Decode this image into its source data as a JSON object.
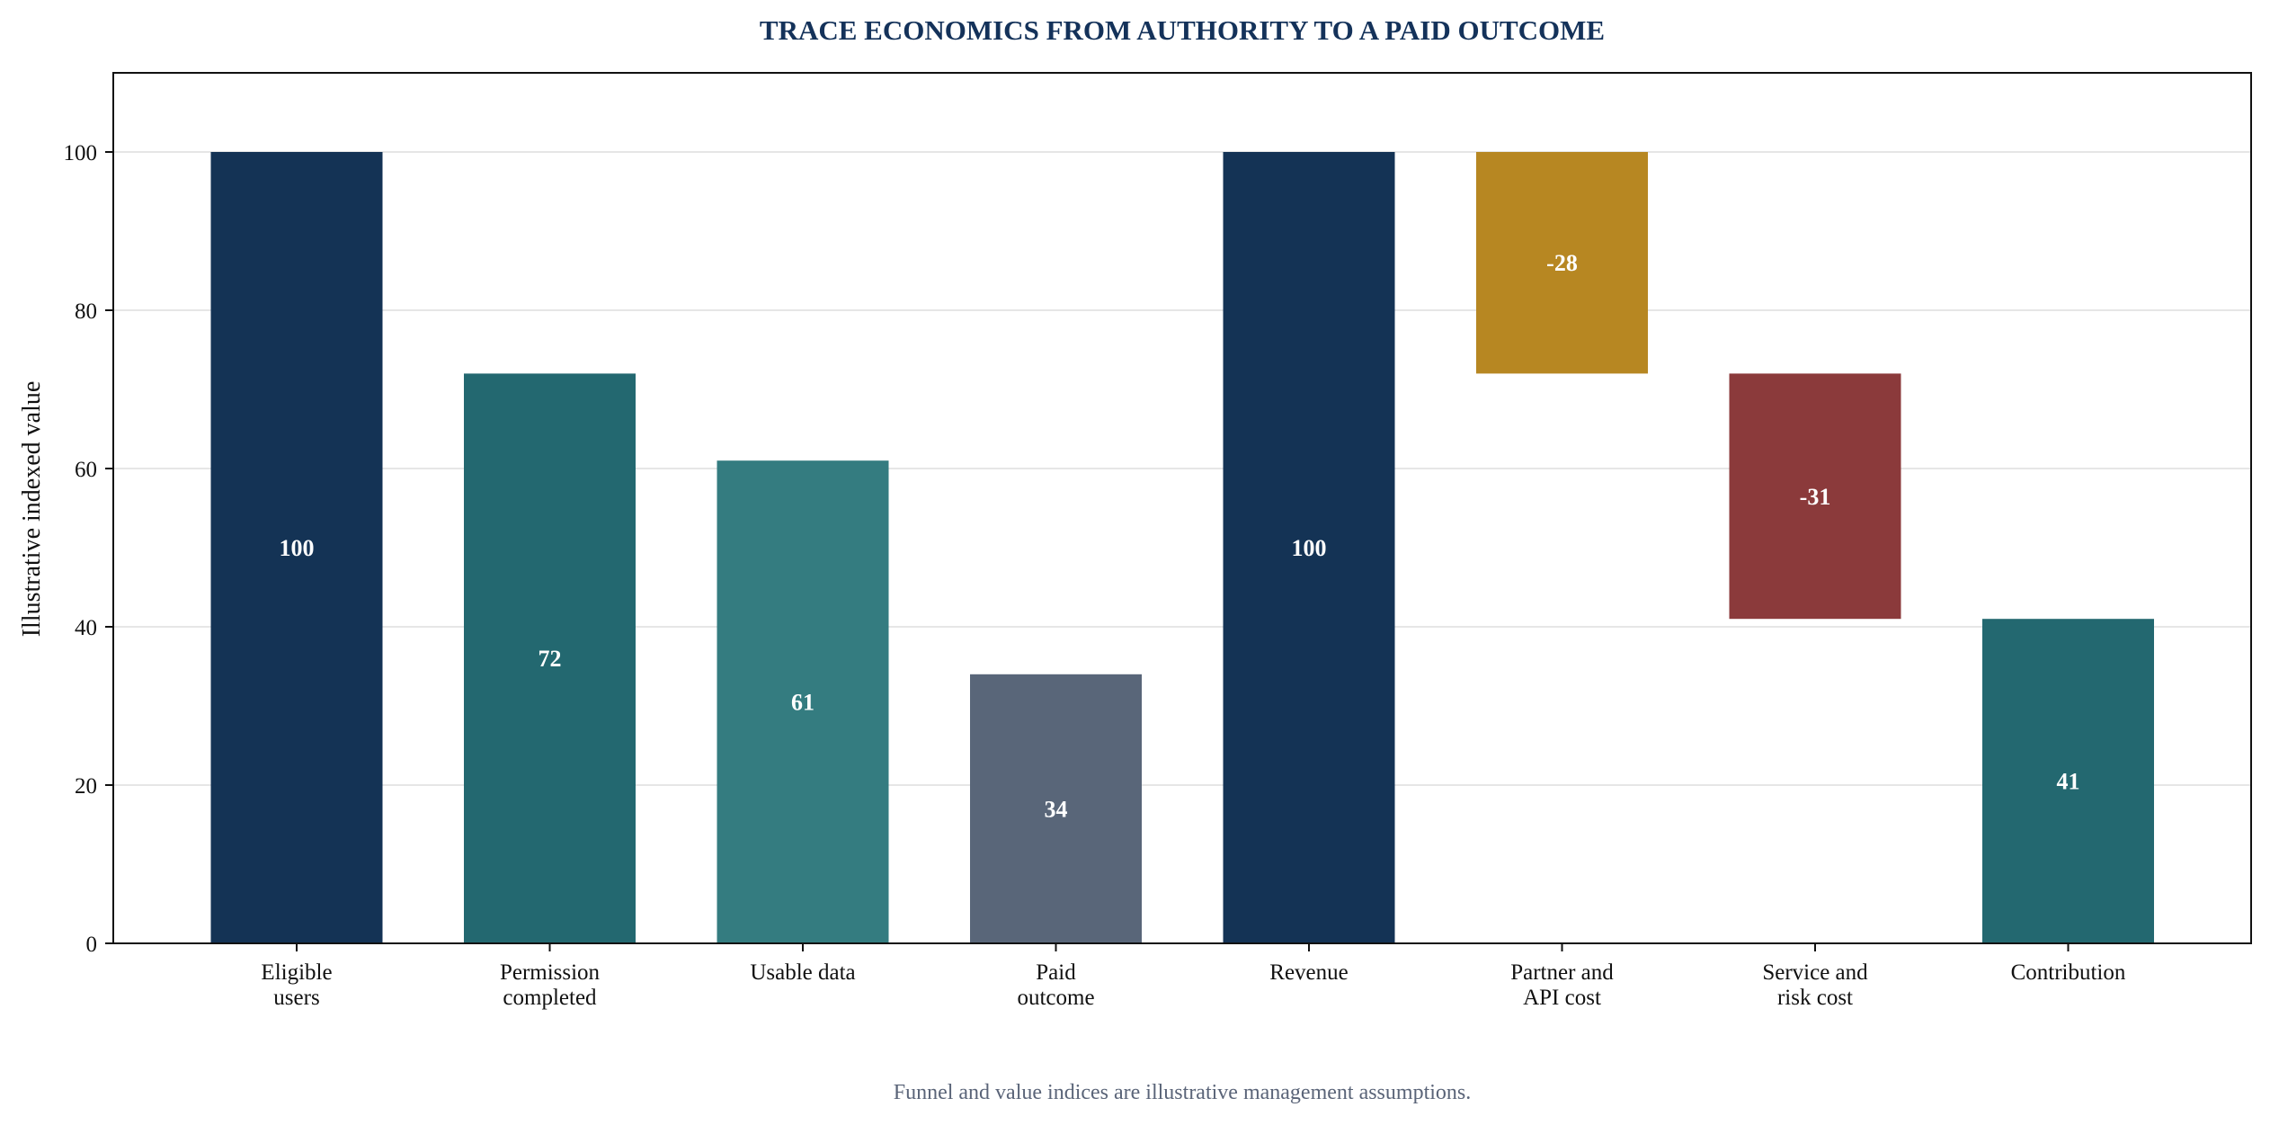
{
  "chart_data": {
    "type": "bar",
    "title": "TRACE ECONOMICS FROM AUTHORITY TO A PAID OUTCOME",
    "ylabel": "Illustrative indexed value",
    "xlabel": "",
    "ylim": [
      0,
      110
    ],
    "yticks": [
      0,
      20,
      40,
      60,
      80,
      100
    ],
    "grid": true,
    "footnote": "Funnel and value indices are illustrative management assumptions.",
    "categories": [
      [
        "Eligible",
        "users"
      ],
      [
        "Permission",
        "completed"
      ],
      [
        "Usable data"
      ],
      [
        "Paid",
        "outcome"
      ],
      [
        "Revenue"
      ],
      [
        "Partner and",
        "API cost"
      ],
      [
        "Service and",
        "risk cost"
      ],
      [
        "Contribution"
      ]
    ],
    "bars": [
      {
        "base": 0,
        "top": 100,
        "label": "100",
        "color": "#143355"
      },
      {
        "base": 0,
        "top": 72,
        "label": "72",
        "color": "#236870"
      },
      {
        "base": 0,
        "top": 61,
        "label": "61",
        "color": "#347c80"
      },
      {
        "base": 0,
        "top": 34,
        "label": "34",
        "color": "#596679"
      },
      {
        "base": 0,
        "top": 100,
        "label": "100",
        "color": "#143355"
      },
      {
        "base": 72,
        "top": 100,
        "label": "-28",
        "color": "#b78722"
      },
      {
        "base": 41,
        "top": 72,
        "label": "-31",
        "color": "#8b3a3b"
      },
      {
        "base": 0,
        "top": 41,
        "label": "41",
        "color": "#236870"
      }
    ],
    "colors": {
      "title": "#14325a",
      "grid": "#e6e6e6",
      "axis": "#111111",
      "footnote": "#5a6478"
    }
  }
}
